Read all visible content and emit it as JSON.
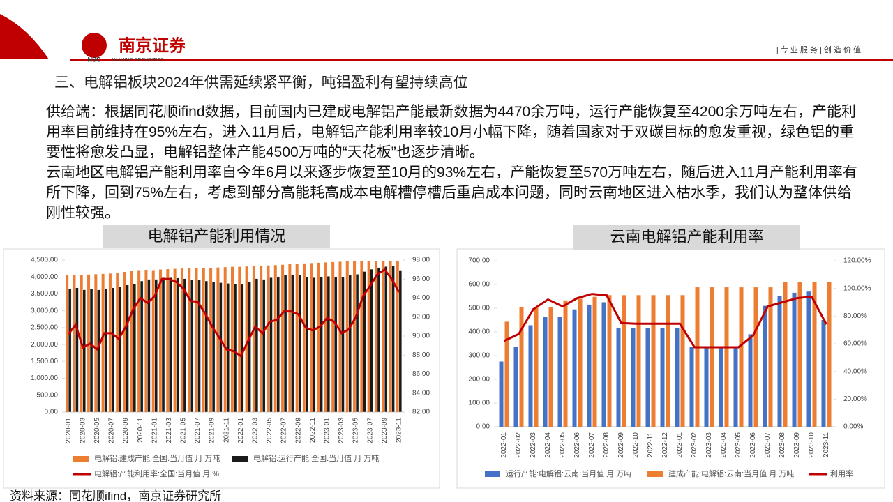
{
  "header": {
    "logo": "南京证券",
    "logo_abbr": "NSC",
    "logo_en": "NANJING SECURITIES",
    "tagline": "| 专 业 服 务 | 创 造 价 值 |"
  },
  "title": "三、电解铝板块2024年供需延续紧平衡，吨铝盈利有望持续高位",
  "paragraphs": [
    "供给端：根据同花顺ifind数据，目前国内已建成电解铝产能最新数据为4470余万吨，运行产能恢复至4200余万吨左右，产能利用率目前维持在95%左右，进入11月后，电解铝产能利用率较10月小幅下降，随着国家对于双碳目标的愈发重视，绿色铝的重要性将愈发凸显，电解铝整体产能4500万吨的“天花板”也逐步清晰。",
    "云南地区电解铝产能利用率自今年6月以来逐步恢复至10月的93%左右，产能恢复至570万吨左右，随后进入11月产能利用率有所下降，回到75%左右，考虑到部分高能耗高成本电解槽停槽后重启成本问题，同时云南地区进入枯水季，我们认为整体供给刚性较强。"
  ],
  "source": "资料来源：同花顺ifind，南京证券研究所",
  "chart_data": [
    {
      "type": "combo",
      "title": "电解铝产能利用情况",
      "categories": [
        "2020-01",
        null,
        "2020-03",
        null,
        "2020-05",
        null,
        "2020-07",
        null,
        "2020-09",
        null,
        "2020-11",
        null,
        "2021-01",
        null,
        "2021-03",
        null,
        "2021-05",
        null,
        "2021-07",
        null,
        "2021-09",
        null,
        "2021-11",
        null,
        "2022-01",
        null,
        "2022-03",
        null,
        "2022-05",
        null,
        "2022-07",
        null,
        "2022-09",
        null,
        "2022-11",
        null,
        "2023-01",
        null,
        "2023-03",
        null,
        "2023-05",
        null,
        "2023-07",
        null,
        "2023-09",
        null,
        "2023-11"
      ],
      "series": [
        {
          "name": "电解铝:建成产能:全国:当月值 月 万吨",
          "type": "bar",
          "color": "#ed7d31",
          "values": [
            4050,
            4060,
            4060,
            4070,
            4080,
            4090,
            4100,
            4120,
            4150,
            4180,
            4200,
            4210,
            4200,
            4220,
            4230,
            4240,
            4250,
            4260,
            4260,
            4270,
            4270,
            4280,
            4290,
            4300,
            4300,
            4310,
            4320,
            4330,
            4340,
            4350,
            4360,
            4380,
            4390,
            4400,
            4410,
            4420,
            4430,
            4440,
            4450,
            4460,
            4460,
            4470,
            4470,
            4470,
            4480,
            4480,
            4470
          ]
        },
        {
          "name": "电解铝:运行产能:全国:当月值 月 万吨",
          "type": "bar",
          "color": "#1a1a1a",
          "values": [
            3650,
            3680,
            3620,
            3640,
            3620,
            3660,
            3680,
            3700,
            3760,
            3800,
            3880,
            3930,
            3930,
            3980,
            3980,
            3970,
            3950,
            3920,
            3910,
            3880,
            3850,
            3830,
            3810,
            3790,
            3780,
            3850,
            3950,
            3930,
            3980,
            4000,
            4050,
            4070,
            4050,
            4000,
            3980,
            4000,
            4020,
            4010,
            4000,
            4050,
            4080,
            4160,
            4230,
            4280,
            4310,
            4320,
            4200
          ]
        },
        {
          "name": "电解铝:产能利用率:全国:当月值 月 %",
          "type": "line",
          "axis": "y2",
          "color": "#c00000",
          "values": [
            90.2,
            91.2,
            88.8,
            89.2,
            88.6,
            90.3,
            90.3,
            89.7,
            91.0,
            92.8,
            94.0,
            93.5,
            94.2,
            96.0,
            96.0,
            95.7,
            95.0,
            93.7,
            93.6,
            92.4,
            91.0,
            89.8,
            88.6,
            88.4,
            87.9,
            89.5,
            91.0,
            90.3,
            91.5,
            91.7,
            92.6,
            92.6,
            92.3,
            90.9,
            90.6,
            91.0,
            91.9,
            91.5,
            90.3,
            90.7,
            92.0,
            94.2,
            95.3,
            96.5,
            97.0,
            96.0,
            94.6
          ]
        }
      ],
      "ylim": [
        0,
        4500
      ],
      "yticks": [
        {
          "value": 0,
          "label": "0.00"
        },
        {
          "value": 500,
          "label": "500.00"
        },
        {
          "value": 1000,
          "label": "1,000.00"
        },
        {
          "value": 1500,
          "label": "1,500.00"
        },
        {
          "value": 2000,
          "label": "2,000.00"
        },
        {
          "value": 2500,
          "label": "2,500.00"
        },
        {
          "value": 3000,
          "label": "3,000.00"
        },
        {
          "value": 3500,
          "label": "3,500.00"
        },
        {
          "value": 4000,
          "label": "4,000.00"
        },
        {
          "value": 4500,
          "label": "4,500.00"
        }
      ],
      "y2lim": [
        82,
        98
      ],
      "y2ticks": [
        {
          "value": 82,
          "label": "82.00"
        },
        {
          "value": 84,
          "label": "84.00"
        },
        {
          "value": 86,
          "label": "86.00"
        },
        {
          "value": 88,
          "label": "88.00"
        },
        {
          "value": 90,
          "label": "90.00"
        },
        {
          "value": 92,
          "label": "92.00"
        },
        {
          "value": 94,
          "label": "94.00"
        },
        {
          "value": 96,
          "label": "96.00"
        },
        {
          "value": 98,
          "label": "98.00"
        }
      ]
    },
    {
      "type": "combo",
      "title": "云南电解铝产能利用率",
      "categories": [
        "2022-01",
        "2022-02",
        "2022-03",
        "2022-04",
        "2022-05",
        "2022-06",
        "2022-07",
        "2022-08",
        "2022-09",
        "2022-10",
        "2022-11",
        "2022-12",
        "2023-01",
        "2023-02",
        "2023-03",
        "2023-04",
        "2023-05",
        "2023-06",
        "2023-07",
        "2023-08",
        "2023-09",
        "2023-10",
        "2023-11"
      ],
      "series": [
        {
          "name": "运行产能:电解铝:云南:当月值 月 万吨",
          "type": "bar",
          "color": "#4472c4",
          "values": [
            275,
            338,
            428,
            463,
            463,
            495,
            515,
            525,
            415,
            415,
            415,
            415,
            415,
            338,
            338,
            338,
            338,
            390,
            510,
            550,
            565,
            570,
            450
          ]
        },
        {
          "name": "建成产能:电解铝:云南:当月值 月 万吨",
          "type": "bar",
          "color": "#ed7d31",
          "values": [
            443,
            503,
            503,
            503,
            533,
            540,
            548,
            555,
            555,
            555,
            555,
            555,
            555,
            588,
            588,
            588,
            588,
            588,
            588,
            610,
            610,
            610,
            610
          ]
        },
        {
          "name": "利用率",
          "type": "line",
          "axis": "y2",
          "color": "#c00000",
          "values": [
            62,
            67,
            85,
            92,
            87,
            93,
            96,
            95,
            75,
            74.5,
            74.5,
            74.5,
            74.5,
            57.5,
            57.5,
            57.5,
            57.5,
            66,
            87,
            90,
            93,
            94,
            74
          ]
        }
      ],
      "ylim": [
        0,
        700
      ],
      "yticks": [
        {
          "value": 0,
          "label": "0.00"
        },
        {
          "value": 100,
          "label": "100.00"
        },
        {
          "value": 200,
          "label": "200.00"
        },
        {
          "value": 300,
          "label": "300.00"
        },
        {
          "value": 400,
          "label": "400.00"
        },
        {
          "value": 500,
          "label": "500.00"
        },
        {
          "value": 600,
          "label": "600.00"
        },
        {
          "value": 700,
          "label": "700.00"
        }
      ],
      "y2lim": [
        0,
        120
      ],
      "y2ticks": [
        {
          "value": 0,
          "label": "0.00%"
        },
        {
          "value": 20,
          "label": "20.00%"
        },
        {
          "value": 40,
          "label": "40.00%"
        },
        {
          "value": 60,
          "label": "60.00%"
        },
        {
          "value": 80,
          "label": "80.00%"
        },
        {
          "value": 100,
          "label": "100.00%"
        },
        {
          "value": 120,
          "label": "120.00%"
        }
      ]
    }
  ]
}
